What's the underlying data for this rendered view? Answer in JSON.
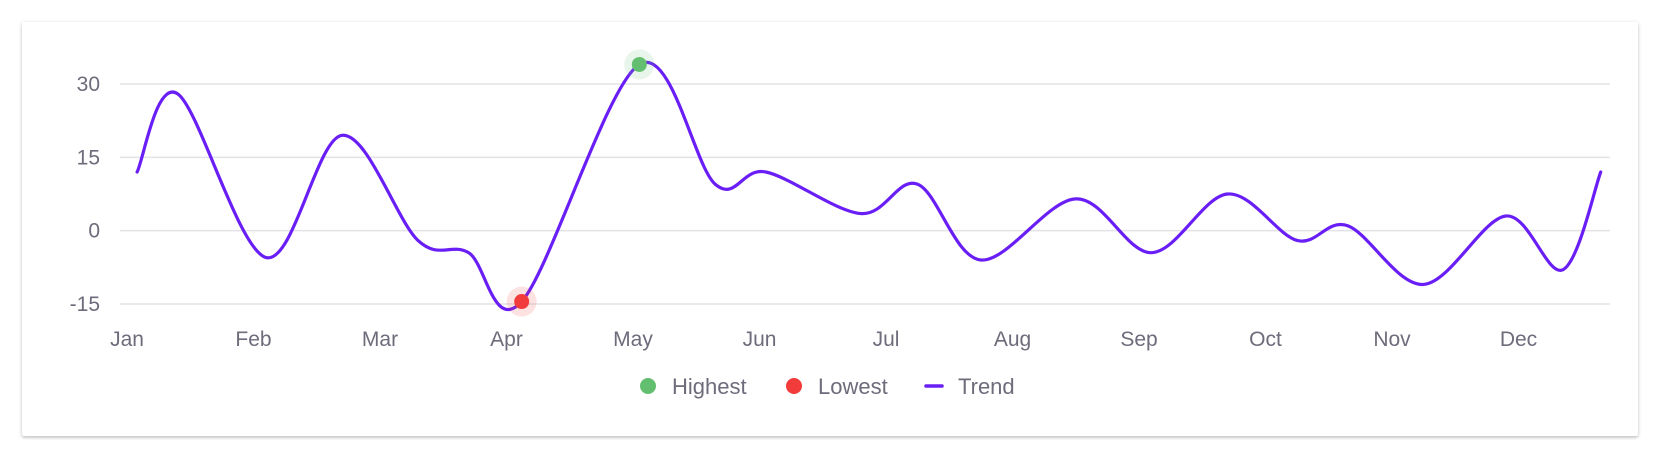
{
  "chart_data": {
    "type": "line",
    "x_labels": [
      "Jan",
      "Feb",
      "Mar",
      "Apr",
      "May",
      "Jun",
      "Jul",
      "Aug",
      "Sep",
      "Oct",
      "Nov",
      "Dec"
    ],
    "y_ticks": [
      30,
      15,
      0,
      -15
    ],
    "ylim": [
      -15,
      30
    ],
    "grid": true,
    "legend_placement": "bottom-center",
    "series": [
      {
        "name": "Trend",
        "color": "#6a1ef6",
        "points": [
          {
            "x": 0.08,
            "y": 12
          },
          {
            "x": 0.4,
            "y": 28
          },
          {
            "x": 1.1,
            "y": -5.5
          },
          {
            "x": 1.7,
            "y": 19.5
          },
          {
            "x": 2.3,
            "y": -2
          },
          {
            "x": 2.7,
            "y": -4.5
          },
          {
            "x": 3.12,
            "y": -14.5
          },
          {
            "x": 4.05,
            "y": 34
          },
          {
            "x": 4.65,
            "y": 9.5
          },
          {
            "x": 5.05,
            "y": 12
          },
          {
            "x": 5.8,
            "y": 3.5
          },
          {
            "x": 6.25,
            "y": 9.5
          },
          {
            "x": 6.75,
            "y": -6
          },
          {
            "x": 7.5,
            "y": 6.5
          },
          {
            "x": 8.1,
            "y": -4.5
          },
          {
            "x": 8.7,
            "y": 7.5
          },
          {
            "x": 9.25,
            "y": -2
          },
          {
            "x": 9.65,
            "y": 1
          },
          {
            "x": 10.25,
            "y": -11
          },
          {
            "x": 10.9,
            "y": 3
          },
          {
            "x": 11.35,
            "y": -8
          },
          {
            "x": 11.65,
            "y": 12
          }
        ]
      }
    ],
    "markers": {
      "highest": {
        "label": "Highest",
        "color": "#63bf6f",
        "x": 4.05,
        "y": 34
      },
      "lowest": {
        "label": "Lowest",
        "color": "#f23b3b",
        "x": 3.12,
        "y": -14.5
      }
    },
    "legend": [
      {
        "label": "Highest",
        "color": "#63bf6f",
        "shape": "circle"
      },
      {
        "label": "Lowest",
        "color": "#f23b3b",
        "shape": "circle"
      },
      {
        "label": "Trend",
        "color": "#6a1ef6",
        "shape": "line"
      }
    ]
  }
}
